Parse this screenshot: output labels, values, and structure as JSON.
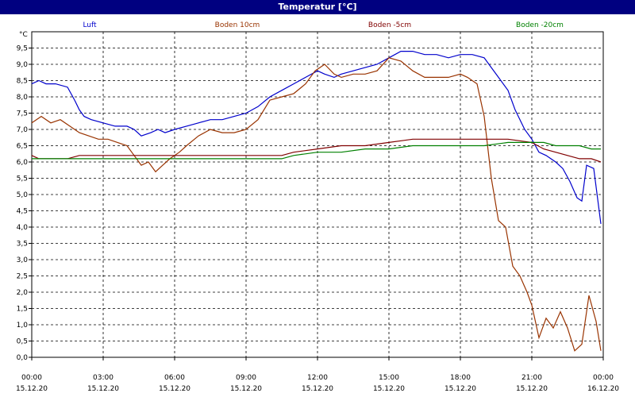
{
  "window": {
    "title": "Temperatur [°C]"
  },
  "chart_data": {
    "type": "line",
    "title": "Temperatur [°C]",
    "ylabel": "°C",
    "ylim": [
      0,
      10
    ],
    "xlim": [
      0,
      24
    ],
    "grid": true,
    "legend_placement": "top",
    "y_ticks": [
      "0,0",
      "0,5",
      "1,0",
      "1,5",
      "2,0",
      "2,5",
      "3,0",
      "3,5",
      "4,0",
      "4,5",
      "5,0",
      "5,5",
      "6,0",
      "6,5",
      "7,0",
      "7,5",
      "8,0",
      "8,5",
      "9,0",
      "9,5"
    ],
    "x_ticks": [
      {
        "time": "00:00",
        "date": "15.12.20"
      },
      {
        "time": "03:00",
        "date": "15.12.20"
      },
      {
        "time": "06:00",
        "date": "15.12.20"
      },
      {
        "time": "09:00",
        "date": "15.12.20"
      },
      {
        "time": "12:00",
        "date": "15.12.20"
      },
      {
        "time": "15:00",
        "date": "15.12.20"
      },
      {
        "time": "18:00",
        "date": "15.12.20"
      },
      {
        "time": "21:00",
        "date": "15.12.20"
      },
      {
        "time": "00:00",
        "date": "16.12.20"
      }
    ],
    "series": [
      {
        "name": "Luft",
        "color": "#0000cc",
        "x": [
          0,
          0.3,
          0.6,
          1,
          1.5,
          1.8,
          2,
          2.2,
          2.5,
          3,
          3.5,
          4,
          4.3,
          4.6,
          5,
          5.3,
          5.6,
          6,
          6.5,
          7,
          7.5,
          8,
          8.5,
          9,
          9.5,
          10,
          10.5,
          11,
          11.5,
          12,
          12.3,
          12.7,
          13,
          13.5,
          14,
          14.5,
          15,
          15.5,
          16,
          16.5,
          17,
          17.5,
          18,
          18.5,
          19,
          19.3,
          19.6,
          20,
          20.3,
          20.7,
          21,
          21.3,
          21.6,
          22,
          22.3,
          22.6,
          22.9,
          23.1,
          23.3,
          23.6,
          23.9
        ],
        "y": [
          8.4,
          8.5,
          8.4,
          8.4,
          8.3,
          7.9,
          7.6,
          7.4,
          7.3,
          7.2,
          7.1,
          7.1,
          7.0,
          6.8,
          6.9,
          7.0,
          6.9,
          7.0,
          7.1,
          7.2,
          7.3,
          7.3,
          7.4,
          7.5,
          7.7,
          8.0,
          8.2,
          8.4,
          8.6,
          8.8,
          8.7,
          8.6,
          8.7,
          8.8,
          8.9,
          9.0,
          9.2,
          9.4,
          9.4,
          9.3,
          9.3,
          9.2,
          9.3,
          9.3,
          9.2,
          8.9,
          8.6,
          8.2,
          7.6,
          7.0,
          6.7,
          6.3,
          6.2,
          6.0,
          5.8,
          5.4,
          4.9,
          4.8,
          5.9,
          5.8,
          4.1
        ]
      },
      {
        "name": "Boden 10cm",
        "color": "#993300",
        "x": [
          0,
          0.4,
          0.8,
          1.2,
          1.6,
          2,
          2.4,
          2.8,
          3.2,
          3.6,
          4,
          4.3,
          4.6,
          4.9,
          5.2,
          5.5,
          5.8,
          6.2,
          6.5,
          7,
          7.5,
          8,
          8.5,
          9,
          9.5,
          10,
          10.5,
          11,
          11.5,
          11.9,
          12.3,
          12.7,
          13,
          13.5,
          14,
          14.5,
          15,
          15.5,
          16,
          16.5,
          17,
          17.5,
          18,
          18.3,
          18.7,
          19,
          19.3,
          19.6,
          19.9,
          20.2,
          20.5,
          20.8,
          21,
          21.3,
          21.6,
          21.9,
          22.2,
          22.5,
          22.8,
          23.1,
          23.4,
          23.7,
          23.9
        ],
        "y": [
          7.2,
          7.4,
          7.2,
          7.3,
          7.1,
          6.9,
          6.8,
          6.7,
          6.7,
          6.6,
          6.5,
          6.2,
          5.9,
          6.0,
          5.7,
          5.9,
          6.1,
          6.3,
          6.5,
          6.8,
          7.0,
          6.9,
          6.9,
          7.0,
          7.3,
          7.9,
          8.0,
          8.1,
          8.4,
          8.8,
          9.0,
          8.7,
          8.6,
          8.7,
          8.7,
          8.8,
          9.2,
          9.1,
          8.8,
          8.6,
          8.6,
          8.6,
          8.7,
          8.6,
          8.4,
          7.4,
          5.5,
          4.2,
          4.0,
          2.8,
          2.5,
          2.0,
          1.6,
          0.6,
          1.2,
          0.9,
          1.4,
          0.9,
          0.2,
          0.4,
          1.9,
          1.1,
          0.2
        ]
      },
      {
        "name": "Boden -5cm",
        "color": "#800000",
        "x": [
          0,
          0.3,
          0.6,
          1,
          1.5,
          2,
          3,
          4,
          5,
          6,
          7,
          8,
          9,
          10,
          10.5,
          11,
          12,
          13,
          14,
          15,
          16,
          17,
          18,
          19,
          20,
          21,
          21.5,
          22,
          22.5,
          23,
          23.5,
          23.9
        ],
        "y": [
          6.2,
          6.1,
          6.1,
          6.1,
          6.1,
          6.2,
          6.2,
          6.2,
          6.2,
          6.2,
          6.2,
          6.2,
          6.2,
          6.2,
          6.2,
          6.3,
          6.4,
          6.5,
          6.5,
          6.6,
          6.7,
          6.7,
          6.7,
          6.7,
          6.7,
          6.6,
          6.4,
          6.3,
          6.2,
          6.1,
          6.1,
          6.0
        ]
      },
      {
        "name": "Boden -20cm",
        "color": "#008000",
        "x": [
          0,
          2,
          4,
          6,
          8,
          10,
          10.5,
          11,
          12,
          13,
          14,
          15,
          16,
          17,
          18,
          19,
          20,
          21,
          21.5,
          22,
          22.5,
          23,
          23.5,
          23.9
        ],
        "y": [
          6.1,
          6.1,
          6.1,
          6.1,
          6.1,
          6.1,
          6.1,
          6.2,
          6.3,
          6.3,
          6.4,
          6.4,
          6.5,
          6.5,
          6.5,
          6.5,
          6.6,
          6.6,
          6.6,
          6.5,
          6.5,
          6.5,
          6.4,
          6.4
        ]
      }
    ]
  }
}
